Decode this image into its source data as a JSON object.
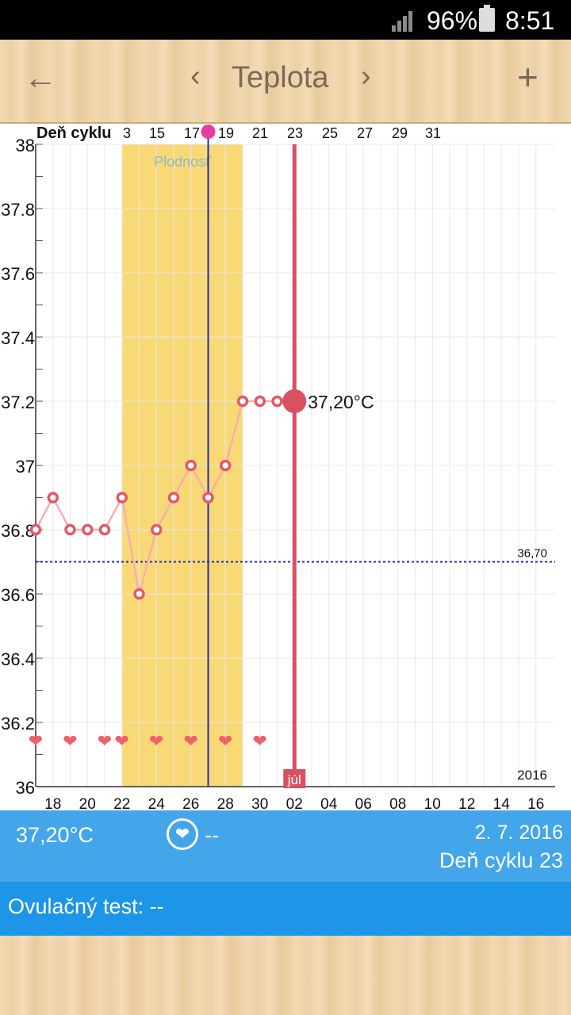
{
  "status_bar": {
    "battery": "96%",
    "time": "8:51"
  },
  "toolbar": {
    "title": "Teplota",
    "back_glyph": "←",
    "prev_glyph": "‹",
    "next_glyph": "›",
    "add_glyph": "+"
  },
  "chart_data": {
    "type": "line",
    "top_axis_label": "Deň cyklu",
    "top_ticks": [
      "3",
      "15",
      "17",
      "19",
      "21",
      "23",
      "25",
      "27",
      "29",
      "31"
    ],
    "x_ticks": [
      "18",
      "20",
      "22",
      "24",
      "26",
      "28",
      "30",
      "02",
      "04",
      "06",
      "08",
      "10",
      "12",
      "14",
      "16"
    ],
    "y_ticks": [
      "38",
      "37.8",
      "37.6",
      "37.4",
      "37.2",
      "37",
      "36.8",
      "36.6",
      "36.4",
      "36.2",
      "36"
    ],
    "ylim": [
      36,
      38
    ],
    "series": [
      {
        "x": [
          "17.6.",
          "18.6.",
          "19.6.",
          "20.6.",
          "21.6.",
          "22.6.",
          "23.6.",
          "24.6.",
          "25.6.",
          "26.6.",
          "27.6.",
          "28.6.",
          "29.6.",
          "30.6.",
          "1.7.",
          "2.7."
        ],
        "values": [
          36.8,
          36.9,
          36.8,
          36.8,
          36.8,
          36.9,
          36.6,
          36.8,
          36.9,
          37.0,
          36.9,
          37.0,
          37.2,
          37.2,
          37.2,
          37.2
        ]
      }
    ],
    "selected_value_label": "37,20°C",
    "coverline_value": 36.7,
    "coverline_label": "36,70",
    "fertility_label": "Plodnosť",
    "fertility_window": [
      "22.6.",
      "29.6."
    ],
    "ovulation_day": "27.6.",
    "intercourse_days": [
      "17.6.",
      "19.6.",
      "21.6.",
      "22.6.",
      "24.6.",
      "26.6.",
      "28.6.",
      "30.6."
    ],
    "month_label": "júl",
    "year_label": "2016",
    "colors": {
      "fertility": "#f9d976",
      "line": "#f5aeb2",
      "marker": "#e0596a",
      "selected": "#d9505f",
      "coverline": "#1f2bb0",
      "ovulation": "#1f2bb0",
      "grid": "#ece8e3"
    }
  },
  "info": {
    "temperature": "37,20°C",
    "intercourse": "--",
    "date": "2. 7. 2016",
    "cycle_day": "Deň cyklu 23"
  },
  "ovulation_test": {
    "label": "Ovulačný test: --"
  }
}
